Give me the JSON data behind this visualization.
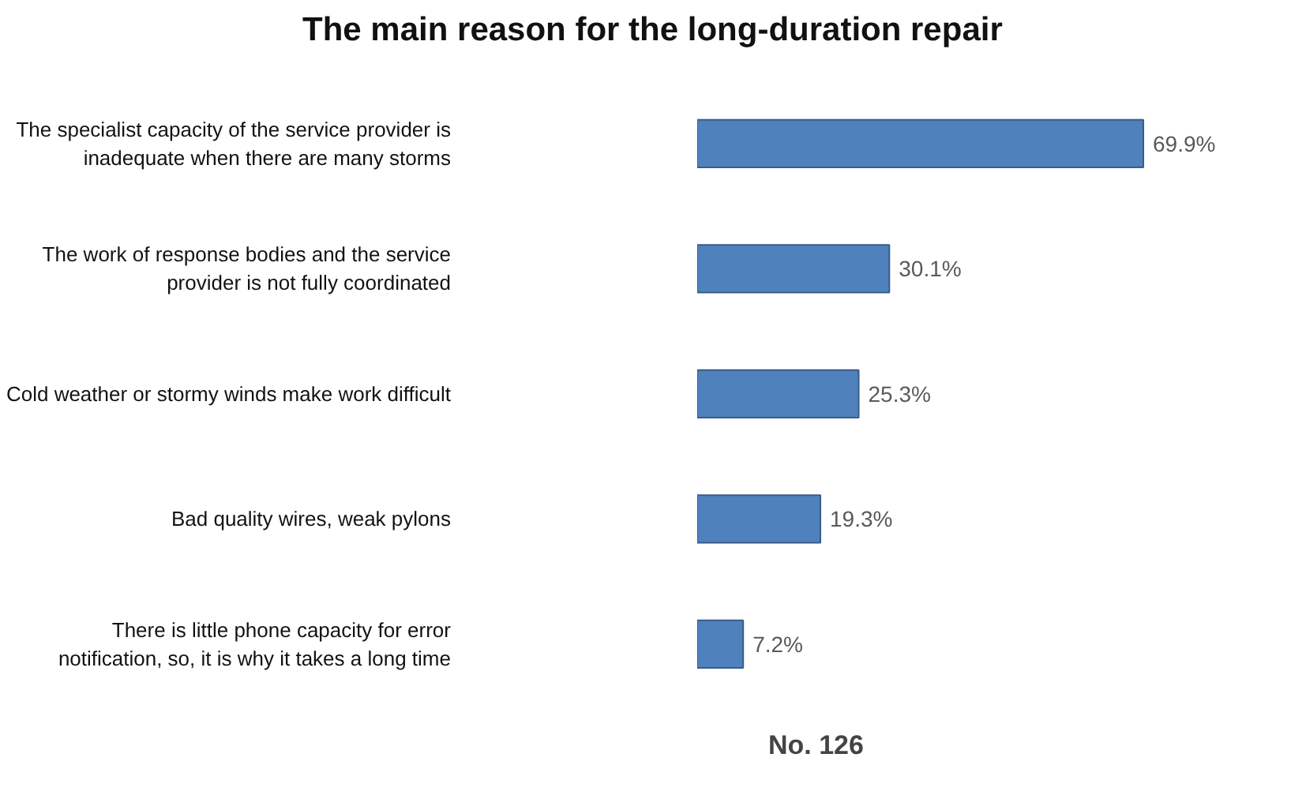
{
  "chart_data": {
    "type": "bar",
    "orientation": "horizontal",
    "title": "The main reason for the long-duration repair",
    "categories": [
      "The specialist capacity of the service provider is inadequate when there are many storms",
      "The work of response bodies and the service provider is not fully coordinated",
      "Cold weather or stormy winds make work difficult",
      "Bad quality wires, weak pylons",
      "There is little phone capacity for error notification, so, it is why it takes a long time"
    ],
    "values": [
      69.9,
      30.1,
      25.3,
      19.3,
      7.2
    ],
    "value_labels": [
      "69.9%",
      "30.1%",
      "25.3%",
      "19.3%",
      "7.2%"
    ],
    "color": "#4f81bd",
    "tick_labels": "y",
    "annotations": [
      "No. 126"
    ]
  }
}
